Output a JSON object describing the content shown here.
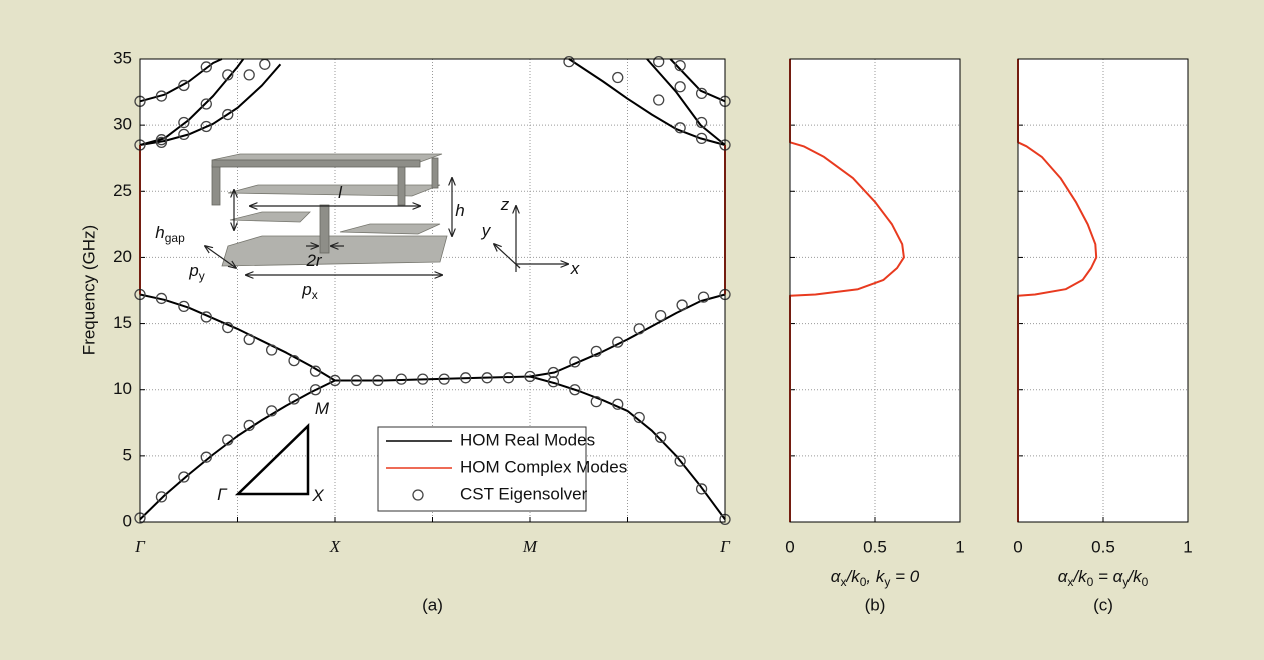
{
  "chart_data": [
    {
      "type": "line",
      "caption": "(a)",
      "ylabel": "Frequency (GHz)",
      "xlim": [
        0,
        3
      ],
      "xticks": [
        {
          "value": 0,
          "label": "Γ"
        },
        {
          "value": 0.5,
          "label": null
        },
        {
          "value": 1,
          "label": "X"
        },
        {
          "value": 1.5,
          "label": null
        },
        {
          "value": 2,
          "label": "M"
        },
        {
          "value": 2.5,
          "label": null
        },
        {
          "value": 3,
          "label": "Γ"
        }
      ],
      "ylim": [
        0,
        35
      ],
      "yticks": [
        0,
        5,
        10,
        15,
        20,
        25,
        30,
        35
      ],
      "ytick_labels": true,
      "grid": true,
      "legend": "lower center",
      "series": [
        {
          "name": "HOM Real Modes",
          "color": "#000000",
          "mode": "lines",
          "x": [
            0,
            0.125,
            0.25,
            0.375,
            0.5,
            0.625,
            0.75,
            0.875,
            1,
            1.25,
            1.5,
            1.75,
            2,
            2.125,
            2.25,
            2.375,
            2.5,
            2.625,
            2.75,
            2.875,
            3,
            null,
            0,
            0.125,
            0.25,
            0.375,
            0.5,
            0.625,
            0.75,
            0.875,
            1,
            1.25,
            1.5,
            1.75,
            2,
            2.125,
            2.25,
            2.375,
            2.5,
            2.625,
            2.75,
            2.875,
            3,
            null,
            0,
            0.125,
            0.25,
            0.375,
            0.42,
            null,
            0,
            0.125,
            0.25,
            0.375,
            0.5,
            0.53,
            null,
            0,
            0.125,
            0.25,
            0.375,
            0.5,
            0.625,
            0.72,
            null,
            2.2,
            2.375,
            2.5,
            2.625,
            2.75,
            2.875,
            3,
            null,
            2.6,
            2.75,
            2.875,
            3,
            null,
            2.72,
            2.875,
            3
          ],
          "values": [
            0.2,
            2.0,
            3.6,
            5.1,
            6.5,
            7.7,
            8.8,
            9.8,
            10.7,
            10.7,
            10.8,
            10.9,
            11.0,
            10.5,
            9.9,
            9.2,
            8.4,
            6.9,
            5.0,
            2.7,
            0.2,
            null,
            17.2,
            16.8,
            16.2,
            15.4,
            14.6,
            13.7,
            12.8,
            11.8,
            10.7,
            10.7,
            10.8,
            10.9,
            11.0,
            11.3,
            12.1,
            12.9,
            13.8,
            14.8,
            15.8,
            16.7,
            17.2,
            null,
            31.8,
            32.3,
            33.3,
            34.7,
            35,
            null,
            28.5,
            29.0,
            30.4,
            32.2,
            34.4,
            35,
            null,
            28.5,
            28.8,
            29.3,
            30.1,
            31.3,
            33.0,
            34.6,
            null,
            35,
            33.3,
            32.0,
            30.8,
            29.7,
            29.0,
            28.5,
            null,
            35,
            32.5,
            30.0,
            28.5,
            null,
            35,
            32.6,
            31.8
          ]
        },
        {
          "name": "HOM Complex Modes",
          "color": "#e83a1f",
          "mode": "lines",
          "x": [
            0,
            0,
            null,
            3,
            3
          ],
          "values": [
            17.2,
            28.5,
            null,
            17.2,
            28.5
          ]
        },
        {
          "name": "CST Eigensolver",
          "color": "#444444",
          "mode": "markers",
          "x": [
            0,
            0.11,
            0.225,
            0.34,
            0.45,
            0.56,
            0.675,
            0.79,
            0.9,
            1,
            0,
            0.11,
            0.225,
            0.34,
            0.45,
            0.56,
            0.675,
            0.79,
            0.9,
            1.11,
            1.22,
            1.34,
            1.45,
            1.56,
            1.67,
            1.78,
            1.89,
            2,
            2.12,
            2.23,
            2.34,
            2.45,
            2.56,
            2.67,
            2.78,
            2.89,
            3,
            2.12,
            2.23,
            2.34,
            2.45,
            2.56,
            2.67,
            2.77,
            2.88,
            3,
            0,
            0.11,
            0.225,
            0.34,
            0,
            0.11,
            0.225,
            0.34,
            0.45,
            0.11,
            0.225,
            0.34,
            0.45,
            0.56,
            0.64,
            2.2,
            2.45,
            2.66,
            2.77,
            2.88,
            3,
            2.66,
            2.77,
            2.88,
            2.77,
            2.88,
            3
          ],
          "values": [
            0.3,
            1.9,
            3.4,
            4.9,
            6.2,
            7.3,
            8.4,
            9.3,
            10.0,
            10.7,
            17.2,
            16.9,
            16.3,
            15.5,
            14.7,
            13.8,
            13.0,
            12.2,
            11.4,
            10.7,
            10.7,
            10.8,
            10.8,
            10.8,
            10.9,
            10.9,
            10.9,
            11.0,
            11.3,
            12.1,
            12.9,
            13.6,
            14.6,
            15.6,
            16.4,
            17.0,
            17.2,
            10.6,
            10.0,
            9.1,
            8.9,
            7.9,
            6.4,
            4.6,
            2.5,
            0.2,
            31.8,
            32.2,
            33.0,
            34.4,
            28.5,
            28.9,
            30.2,
            31.6,
            33.8,
            28.7,
            29.3,
            29.9,
            30.8,
            33.8,
            34.6,
            34.8,
            33.6,
            31.9,
            29.8,
            29.0,
            28.5,
            34.8,
            32.9,
            30.2,
            34.5,
            32.4,
            31.8
          ]
        }
      ],
      "annotations": [
        [
          "h",
          "gap"
        ],
        [
          "l"
        ],
        [
          "h"
        ],
        [
          "z"
        ],
        [
          "y"
        ],
        [
          "x"
        ],
        [
          "2r"
        ],
        [
          "p",
          "y"
        ],
        [
          "p",
          "x"
        ],
        [
          "M"
        ],
        [
          "Γ"
        ],
        [
          "X"
        ]
      ]
    },
    {
      "type": "line",
      "caption": "(b)",
      "xlabel": [
        "α",
        "x",
        "/k",
        "0",
        ", k",
        "y",
        " = 0"
      ],
      "xlim": [
        0,
        1
      ],
      "xticks": [
        0,
        0.5,
        1
      ],
      "ylim": [
        0,
        35
      ],
      "yticks": [
        0,
        5,
        10,
        15,
        20,
        25,
        30,
        35
      ],
      "ytick_labels": false,
      "grid": true,
      "series": [
        {
          "color": "#e83a1f",
          "mode": "lines",
          "x": [
            0,
            0,
            0.15,
            0.4,
            0.55,
            0.63,
            0.67,
            0.66,
            0.6,
            0.5,
            0.37,
            0.2,
            0.08,
            0,
            0
          ],
          "values": [
            0,
            17.1,
            17.2,
            17.6,
            18.3,
            19.2,
            20,
            21,
            22.5,
            24.2,
            26,
            27.6,
            28.4,
            28.7,
            35
          ]
        }
      ]
    },
    {
      "type": "line",
      "caption": "(c)",
      "xlabel": [
        "α",
        "x",
        "/k",
        "0",
        " = α",
        "y",
        "/k",
        "0"
      ],
      "xlim": [
        0,
        1
      ],
      "xticks": [
        0,
        0.5,
        1
      ],
      "ylim": [
        0,
        35
      ],
      "yticks": [
        0,
        5,
        10,
        15,
        20,
        25,
        30,
        35
      ],
      "ytick_labels": false,
      "grid": true,
      "series": [
        {
          "color": "#e83a1f",
          "mode": "lines",
          "x": [
            0,
            0,
            0.1,
            0.28,
            0.38,
            0.43,
            0.46,
            0.455,
            0.41,
            0.34,
            0.25,
            0.14,
            0.05,
            0,
            0
          ],
          "values": [
            0,
            17.1,
            17.2,
            17.6,
            18.3,
            19.2,
            20,
            21,
            22.5,
            24.2,
            26,
            27.6,
            28.4,
            28.7,
            35
          ]
        }
      ]
    }
  ]
}
